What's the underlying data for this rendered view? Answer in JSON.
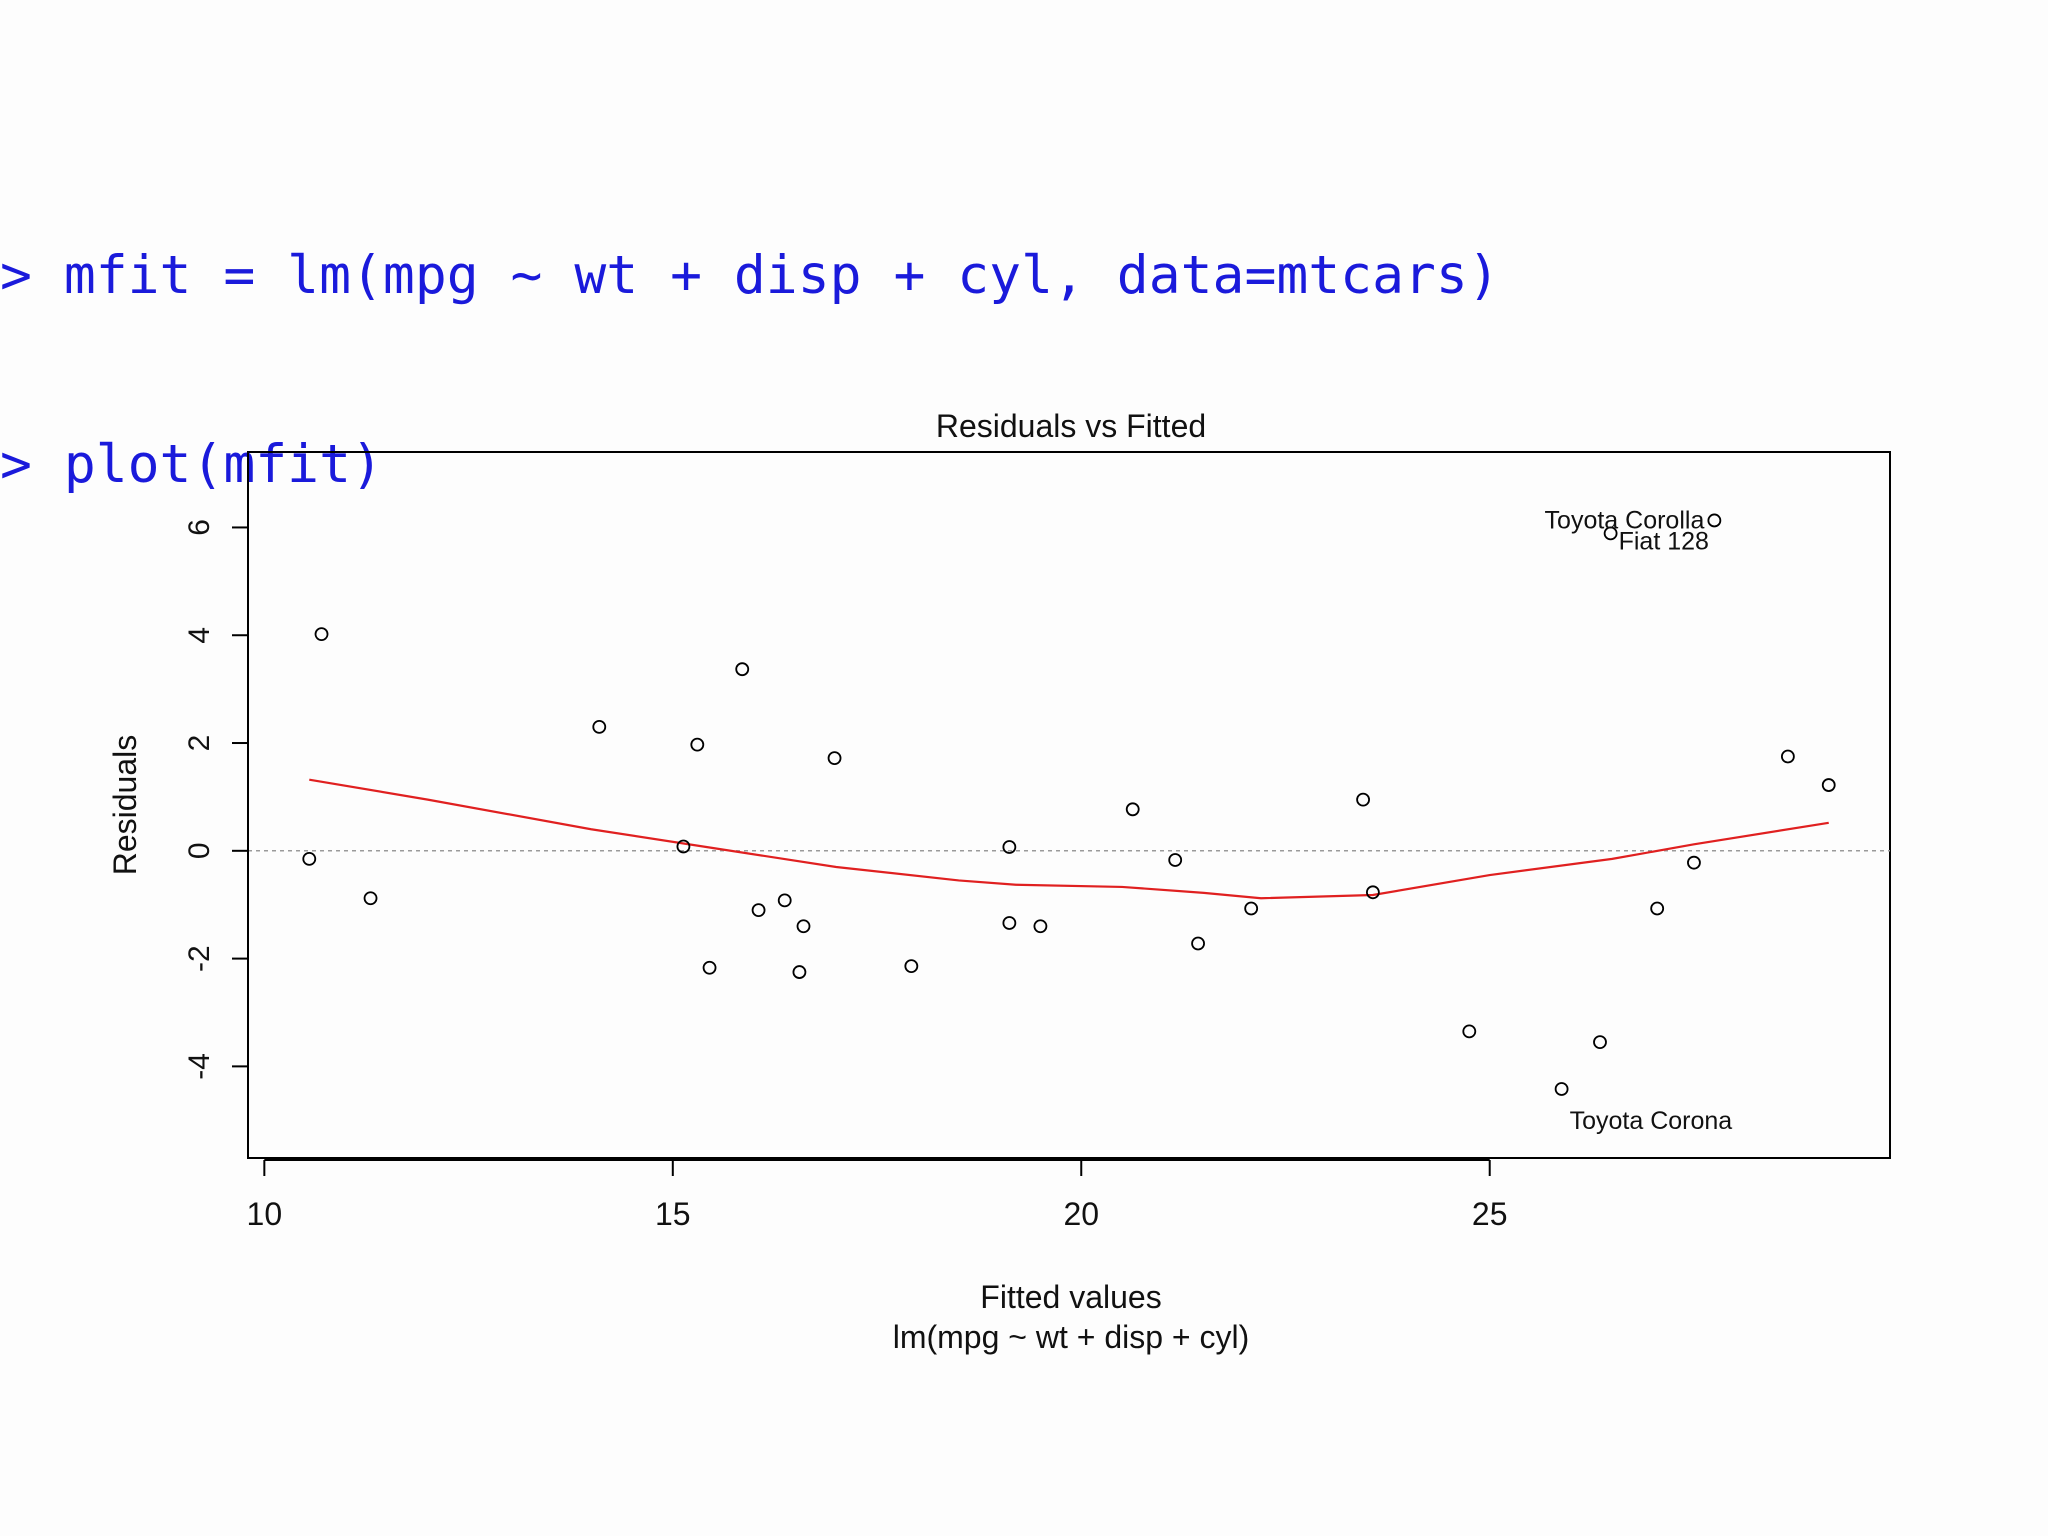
{
  "colors": {
    "console_text": "#1a1adb",
    "axis": "#000000",
    "smooth_line": "#e02020",
    "zero_line": "#9a9a9a",
    "point_stroke": "#000000"
  },
  "console": {
    "lines": [
      "> mfit = lm(mpg ~ wt + disp + cyl, data=mtcars)",
      "> plot(mfit)"
    ]
  },
  "chart_data": {
    "type": "scatter",
    "title": "Residuals vs Fitted",
    "xlabel": "Fitted values",
    "xlabel2": "lm(mpg ~ wt + disp + cyl)",
    "ylabel": "Residuals",
    "xlim": [
      9.8,
      29.9
    ],
    "ylim": [
      -5.7,
      7.4
    ],
    "xticks": [
      10,
      15,
      20,
      25
    ],
    "yticks": [
      -4,
      -2,
      0,
      2,
      4,
      6
    ],
    "reference_line": {
      "y": 0,
      "style": "dotted"
    },
    "grid": false,
    "points": [
      {
        "x": 10.55,
        "y": -0.15
      },
      {
        "x": 10.7,
        "y": 4.02
      },
      {
        "x": 11.3,
        "y": -0.88
      },
      {
        "x": 14.1,
        "y": 2.3
      },
      {
        "x": 15.13,
        "y": 0.08
      },
      {
        "x": 15.3,
        "y": 1.97
      },
      {
        "x": 15.45,
        "y": -2.17
      },
      {
        "x": 15.85,
        "y": 3.37
      },
      {
        "x": 16.05,
        "y": -1.1
      },
      {
        "x": 16.37,
        "y": -0.92
      },
      {
        "x": 16.55,
        "y": -2.25
      },
      {
        "x": 16.6,
        "y": -1.4
      },
      {
        "x": 16.98,
        "y": 1.72
      },
      {
        "x": 17.92,
        "y": -2.14
      },
      {
        "x": 19.12,
        "y": 0.07
      },
      {
        "x": 19.12,
        "y": -1.34
      },
      {
        "x": 19.5,
        "y": -1.4
      },
      {
        "x": 20.63,
        "y": 0.77
      },
      {
        "x": 21.15,
        "y": -0.17
      },
      {
        "x": 21.43,
        "y": -1.72
      },
      {
        "x": 22.08,
        "y": -1.07
      },
      {
        "x": 23.45,
        "y": 0.95
      },
      {
        "x": 23.57,
        "y": -0.77
      },
      {
        "x": 24.75,
        "y": -3.35
      },
      {
        "x": 25.88,
        "y": -4.42
      },
      {
        "x": 26.35,
        "y": -3.55
      },
      {
        "x": 26.48,
        "y": 5.89
      },
      {
        "x": 27.05,
        "y": -1.07
      },
      {
        "x": 27.5,
        "y": -0.22
      },
      {
        "x": 27.75,
        "y": 6.13
      },
      {
        "x": 28.65,
        "y": 1.75
      },
      {
        "x": 29.15,
        "y": 1.22
      }
    ],
    "smooth_line": [
      {
        "x": 10.55,
        "y": 1.32
      },
      {
        "x": 12.0,
        "y": 0.95
      },
      {
        "x": 14.0,
        "y": 0.4
      },
      {
        "x": 15.5,
        "y": 0.05
      },
      {
        "x": 17.0,
        "y": -0.3
      },
      {
        "x": 18.5,
        "y": -0.55
      },
      {
        "x": 19.2,
        "y": -0.63
      },
      {
        "x": 20.5,
        "y": -0.67
      },
      {
        "x": 21.5,
        "y": -0.78
      },
      {
        "x": 22.2,
        "y": -0.88
      },
      {
        "x": 23.57,
        "y": -0.82
      },
      {
        "x": 25.0,
        "y": -0.45
      },
      {
        "x": 26.5,
        "y": -0.15
      },
      {
        "x": 27.5,
        "y": 0.12
      },
      {
        "x": 29.15,
        "y": 0.52
      }
    ],
    "annotations": [
      {
        "text": "Toyota Corolla",
        "x": 27.75,
        "y": 6.13,
        "anchor": "end"
      },
      {
        "text": "Fiat 128",
        "x": 26.48,
        "y": 5.89,
        "anchor": "start"
      },
      {
        "text": "Toyota Corona",
        "x": 25.88,
        "y": -4.42,
        "anchor": "below"
      }
    ]
  }
}
